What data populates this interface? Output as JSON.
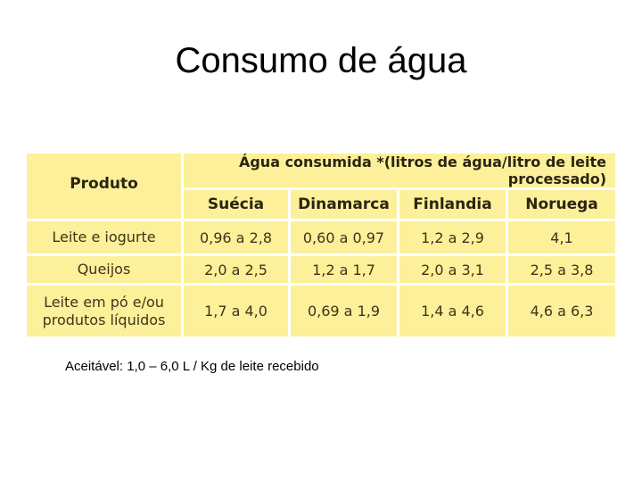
{
  "title": "Consumo de água",
  "table": {
    "product_header": "Produto",
    "group_header": "Água consumida *(litros de água/litro de leite processado)",
    "columns": [
      "Suécia",
      "Dinamarca",
      "Finlandia",
      "Noruega"
    ],
    "rows": [
      {
        "product": "Leite e iogurte",
        "values": [
          "0,96 a 2,8",
          "0,60 a 0,97",
          "1,2 a 2,9",
          "4,1"
        ]
      },
      {
        "product": "Queijos",
        "values": [
          "2,0 a 2,5",
          "1,2 a 1,7",
          "2,0 a 3,1",
          "2,5 a 3,8"
        ]
      },
      {
        "product": "Leite em pó e/ou produtos líquidos",
        "values": [
          "1,7 a 4,0",
          "0,69 a 1,9",
          "1,4 a 4,6",
          "4,6 a 6,3"
        ]
      }
    ]
  },
  "note": "Aceitável: 1,0 – 6,0 L / Kg de leite recebido",
  "colors": {
    "table_fill": "#fdf09a",
    "table_text": "#3f3418",
    "grid": "#ffffff"
  }
}
